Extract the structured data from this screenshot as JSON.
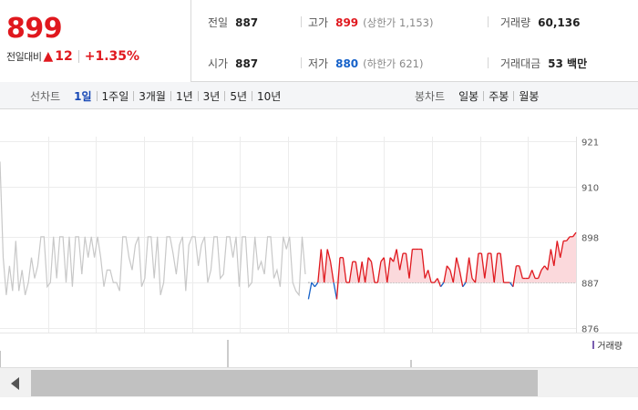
{
  "header": {
    "current_price": "899",
    "change_label": "전일대비",
    "change_arrow": "▲",
    "change_value": "12",
    "change_pct": "+1.35%",
    "stats": {
      "prev_close": {
        "label": "전일",
        "value": "887"
      },
      "high": {
        "label": "고가",
        "value": "899",
        "sub": "(상한가 1,153)"
      },
      "volume": {
        "label": "거래량",
        "value": "60,136"
      },
      "open": {
        "label": "시가",
        "value": "887"
      },
      "low": {
        "label": "저가",
        "value": "880",
        "sub": "(하한가 621)"
      },
      "trade_amount": {
        "label": "거래대금",
        "value": "53 백만"
      }
    }
  },
  "toolbar": {
    "line_label": "선차트",
    "line_options": [
      "1일",
      "1주일",
      "3개월",
      "1년",
      "3년",
      "5년",
      "10년"
    ],
    "line_active": "1일",
    "candle_label": "봉차트",
    "candle_options": [
      "일봉",
      "주봉",
      "월봉"
    ]
  },
  "chart_data": {
    "type": "line",
    "ylim": [
      875,
      922
    ],
    "y_ticks": [
      "921",
      "910",
      "898",
      "887",
      "876"
    ],
    "baseline": 887,
    "colors": {
      "up": "#e0181e",
      "down": "#1561c9",
      "prev": "#c8c8c8",
      "fill": "#fbd9dc",
      "grid": "#ececec"
    },
    "prev_series": [
      [
        0,
        916
      ],
      [
        1,
        893
      ],
      [
        2,
        884
      ],
      [
        3,
        891
      ],
      [
        4,
        885
      ],
      [
        5,
        897
      ],
      [
        6,
        885
      ],
      [
        7,
        890
      ],
      [
        8,
        884
      ],
      [
        9,
        887
      ],
      [
        10,
        893
      ],
      [
        11,
        888
      ],
      [
        12,
        891
      ],
      [
        13,
        898
      ],
      [
        14,
        898
      ],
      [
        15,
        886
      ],
      [
        16,
        887
      ],
      [
        17,
        898
      ],
      [
        18,
        888
      ],
      [
        19,
        898
      ],
      [
        20,
        898
      ],
      [
        21,
        887
      ],
      [
        22,
        898
      ],
      [
        23,
        886
      ],
      [
        24,
        898
      ],
      [
        25,
        898
      ],
      [
        26,
        889
      ],
      [
        27,
        898
      ],
      [
        28,
        893
      ],
      [
        29,
        898
      ],
      [
        30,
        893
      ],
      [
        31,
        898
      ],
      [
        32,
        893
      ],
      [
        33,
        886
      ],
      [
        34,
        890
      ],
      [
        35,
        890
      ],
      [
        36,
        887
      ],
      [
        37,
        887
      ],
      [
        38,
        885
      ],
      [
        39,
        898
      ],
      [
        40,
        898
      ],
      [
        41,
        893
      ],
      [
        42,
        890
      ],
      [
        43,
        896
      ],
      [
        44,
        898
      ],
      [
        45,
        886
      ],
      [
        46,
        888
      ],
      [
        47,
        898
      ],
      [
        48,
        898
      ],
      [
        49,
        888
      ],
      [
        50,
        898
      ],
      [
        51,
        884
      ],
      [
        52,
        887
      ],
      [
        53,
        898
      ],
      [
        54,
        898
      ],
      [
        55,
        894
      ],
      [
        56,
        889
      ],
      [
        57,
        896
      ],
      [
        58,
        898
      ],
      [
        59,
        885
      ],
      [
        60,
        896
      ],
      [
        61,
        898
      ],
      [
        62,
        898
      ],
      [
        63,
        891
      ],
      [
        64,
        896
      ],
      [
        65,
        898
      ],
      [
        66,
        887
      ],
      [
        67,
        890
      ],
      [
        68,
        898
      ],
      [
        69,
        898
      ],
      [
        70,
        888
      ],
      [
        71,
        889
      ],
      [
        72,
        898
      ],
      [
        73,
        898
      ],
      [
        74,
        893
      ],
      [
        75,
        898
      ],
      [
        76,
        886
      ],
      [
        77,
        898
      ],
      [
        78,
        898
      ],
      [
        79,
        886
      ],
      [
        80,
        887
      ],
      [
        81,
        898
      ],
      [
        82,
        890
      ],
      [
        83,
        892
      ],
      [
        84,
        889
      ],
      [
        85,
        898
      ],
      [
        86,
        898
      ],
      [
        87,
        888
      ],
      [
        88,
        890
      ],
      [
        89,
        886
      ],
      [
        90,
        898
      ],
      [
        91,
        895
      ],
      [
        92,
        898
      ],
      [
        93,
        887
      ],
      [
        94,
        885
      ],
      [
        95,
        884
      ],
      [
        96,
        898
      ],
      [
        97,
        889
      ]
    ],
    "today_series": [
      [
        98,
        883
      ],
      [
        99,
        887
      ],
      [
        100,
        886
      ],
      [
        101,
        887
      ],
      [
        102,
        895
      ],
      [
        103,
        887
      ],
      [
        104,
        895
      ],
      [
        105,
        892
      ],
      [
        106,
        887
      ],
      [
        107,
        883
      ],
      [
        108,
        893
      ],
      [
        109,
        893
      ],
      [
        110,
        887
      ],
      [
        111,
        887
      ],
      [
        112,
        892
      ],
      [
        113,
        892
      ],
      [
        114,
        887
      ],
      [
        115,
        892
      ],
      [
        116,
        887
      ],
      [
        117,
        893
      ],
      [
        118,
        892
      ],
      [
        119,
        887
      ],
      [
        120,
        887
      ],
      [
        121,
        892
      ],
      [
        122,
        893
      ],
      [
        123,
        887
      ],
      [
        124,
        893
      ],
      [
        125,
        892
      ],
      [
        126,
        895
      ],
      [
        127,
        890
      ],
      [
        128,
        894
      ],
      [
        129,
        894
      ],
      [
        130,
        888
      ],
      [
        131,
        895
      ],
      [
        132,
        895
      ],
      [
        133,
        895
      ],
      [
        134,
        895
      ],
      [
        135,
        888
      ],
      [
        136,
        890
      ],
      [
        137,
        887
      ],
      [
        138,
        887
      ],
      [
        139,
        888
      ],
      [
        140,
        886
      ],
      [
        141,
        887
      ],
      [
        142,
        891
      ],
      [
        143,
        890
      ],
      [
        144,
        887
      ],
      [
        145,
        893
      ],
      [
        146,
        890
      ],
      [
        147,
        886
      ],
      [
        148,
        887
      ],
      [
        149,
        893
      ],
      [
        150,
        888
      ],
      [
        151,
        887
      ],
      [
        152,
        894
      ],
      [
        153,
        894
      ],
      [
        154,
        888
      ],
      [
        155,
        894
      ],
      [
        156,
        894
      ],
      [
        157,
        887
      ],
      [
        158,
        894
      ],
      [
        159,
        894
      ],
      [
        160,
        887
      ],
      [
        161,
        887
      ],
      [
        162,
        887
      ],
      [
        163,
        886
      ],
      [
        164,
        891
      ],
      [
        165,
        891
      ],
      [
        166,
        888
      ],
      [
        167,
        888
      ],
      [
        168,
        888
      ],
      [
        169,
        890
      ],
      [
        170,
        888
      ],
      [
        171,
        888
      ],
      [
        172,
        890
      ],
      [
        173,
        891
      ],
      [
        174,
        890
      ],
      [
        175,
        895
      ],
      [
        176,
        891
      ],
      [
        177,
        897
      ],
      [
        178,
        893
      ],
      [
        179,
        897
      ],
      [
        180,
        897
      ],
      [
        181,
        898
      ],
      [
        182,
        898
      ],
      [
        183,
        899
      ]
    ],
    "x_max": 183
  },
  "volume_legend": "거래량"
}
